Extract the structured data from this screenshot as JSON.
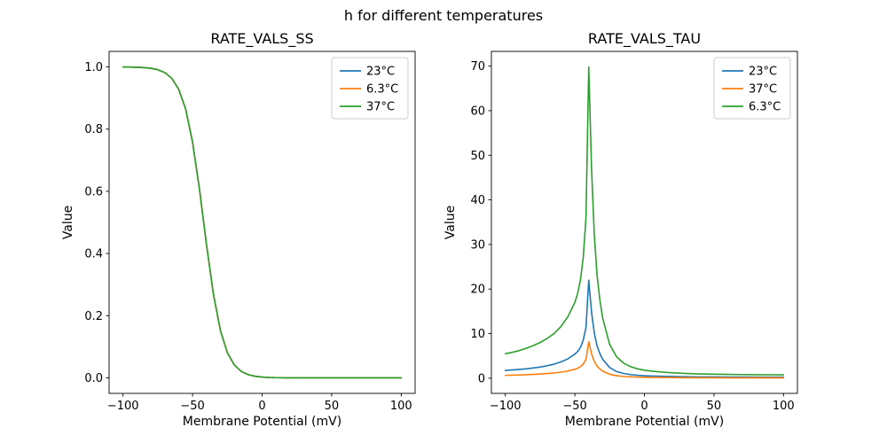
{
  "figure": {
    "title": "h for different temperatures",
    "background": "#ffffff"
  },
  "colors": {
    "blue": "#1f77b4",
    "orange": "#ff7f0e",
    "green": "#2ca02c",
    "axis": "#000000",
    "legend_border": "#cccccc"
  },
  "chart_data": [
    {
      "type": "line",
      "title": "RATE_VALS_SS",
      "xlabel": "Membrane Potential (mV)",
      "ylabel": "Value",
      "xlim": [
        -110,
        110
      ],
      "ylim": [
        -0.05,
        1.05
      ],
      "xticks": [
        -100,
        -50,
        0,
        50,
        100
      ],
      "xticklabels": [
        "−100",
        "−50",
        "0",
        "50",
        "100"
      ],
      "yticks": [
        0.0,
        0.2,
        0.4,
        0.6,
        0.8,
        1.0
      ],
      "yticklabels": [
        "0.0",
        "0.2",
        "0.4",
        "0.6",
        "0.8",
        "1.0"
      ],
      "legend_position": "upper right",
      "grid": false,
      "series_overlap": true,
      "x": [
        -100,
        -95,
        -90,
        -85,
        -80,
        -75,
        -70,
        -65,
        -60,
        -55,
        -50,
        -45,
        -40,
        -35,
        -30,
        -25,
        -20,
        -15,
        -10,
        -5,
        0,
        5,
        10,
        15,
        20,
        25,
        30,
        35,
        40,
        45,
        50,
        55,
        60,
        65,
        70,
        75,
        80,
        85,
        90,
        95,
        100
      ],
      "shared_values": [
        0.9997,
        0.9995,
        0.999,
        0.9979,
        0.9956,
        0.991,
        0.982,
        0.9636,
        0.9285,
        0.8651,
        0.7581,
        0.6057,
        0.4293,
        0.269,
        0.1526,
        0.081,
        0.0414,
        0.0207,
        0.0102,
        0.005,
        0.0025,
        0.0012,
        0.0006,
        0.0003,
        0.0001,
        0.0001,
        0,
        0,
        0,
        0,
        0,
        0,
        0,
        0,
        0,
        0,
        0,
        0,
        0,
        0,
        0
      ],
      "series": [
        {
          "name": "23°C",
          "color": "#1f77b4"
        },
        {
          "name": "6.3°C",
          "color": "#ff7f0e"
        },
        {
          "name": "37°C",
          "color": "#2ca02c"
        }
      ]
    },
    {
      "type": "line",
      "title": "RATE_VALS_TAU",
      "xlabel": "Membrane Potential (mV)",
      "ylabel": "Value",
      "xlim": [
        -110,
        110
      ],
      "ylim": [
        -3.4,
        73.3
      ],
      "xticks": [
        -100,
        -50,
        0,
        50,
        100
      ],
      "xticklabels": [
        "−100",
        "−50",
        "0",
        "50",
        "100"
      ],
      "yticks": [
        0,
        10,
        20,
        30,
        40,
        50,
        60,
        70
      ],
      "yticklabels": [
        "0",
        "10",
        "20",
        "30",
        "40",
        "50",
        "60",
        "70"
      ],
      "legend_position": "upper right",
      "grid": false,
      "x": [
        -100,
        -95,
        -90,
        -85,
        -80,
        -75,
        -70,
        -65,
        -60,
        -55,
        -50,
        -48,
        -46,
        -44,
        -42,
        -40,
        -38,
        -36,
        -34,
        -32,
        -30,
        -25,
        -20,
        -15,
        -10,
        -5,
        0,
        5,
        10,
        15,
        20,
        30,
        40,
        50,
        60,
        70,
        80,
        90,
        100
      ],
      "series": [
        {
          "name": "23°C",
          "color": "#1f77b4",
          "values": [
            1.75,
            1.85,
            1.97,
            2.1,
            2.3,
            2.5,
            2.8,
            3.15,
            3.65,
            4.35,
            5.4,
            6.0,
            6.9,
            8.5,
            11.4,
            22.0,
            14.8,
            10.1,
            7.2,
            5.5,
            4.25,
            2.4,
            1.5,
            1.07,
            0.82,
            0.66,
            0.57,
            0.5,
            0.46,
            0.42,
            0.38,
            0.33,
            0.3,
            0.28,
            0.27,
            0.26,
            0.25,
            0.24,
            0.24
          ]
        },
        {
          "name": "37°C",
          "color": "#ff7f0e",
          "values": [
            0.65,
            0.68,
            0.73,
            0.79,
            0.86,
            0.94,
            1.05,
            1.18,
            1.37,
            1.62,
            2.0,
            2.24,
            2.59,
            3.18,
            4.24,
            8.2,
            5.5,
            3.76,
            2.7,
            2.06,
            1.59,
            0.89,
            0.56,
            0.4,
            0.31,
            0.25,
            0.21,
            0.19,
            0.17,
            0.16,
            0.14,
            0.12,
            0.11,
            0.11,
            0.1,
            0.1,
            0.09,
            0.09,
            0.09
          ]
        },
        {
          "name": "6.3°C",
          "color": "#2ca02c",
          "values": [
            5.5,
            5.8,
            6.2,
            6.7,
            7.3,
            8.0,
            8.9,
            10.0,
            11.6,
            13.8,
            17.0,
            19.0,
            22.0,
            27.0,
            36.0,
            69.8,
            47.0,
            32.0,
            23.0,
            17.5,
            13.5,
            7.6,
            4.8,
            3.4,
            2.6,
            2.1,
            1.8,
            1.6,
            1.45,
            1.32,
            1.22,
            1.05,
            0.95,
            0.9,
            0.85,
            0.82,
            0.79,
            0.77,
            0.75
          ]
        }
      ]
    }
  ]
}
